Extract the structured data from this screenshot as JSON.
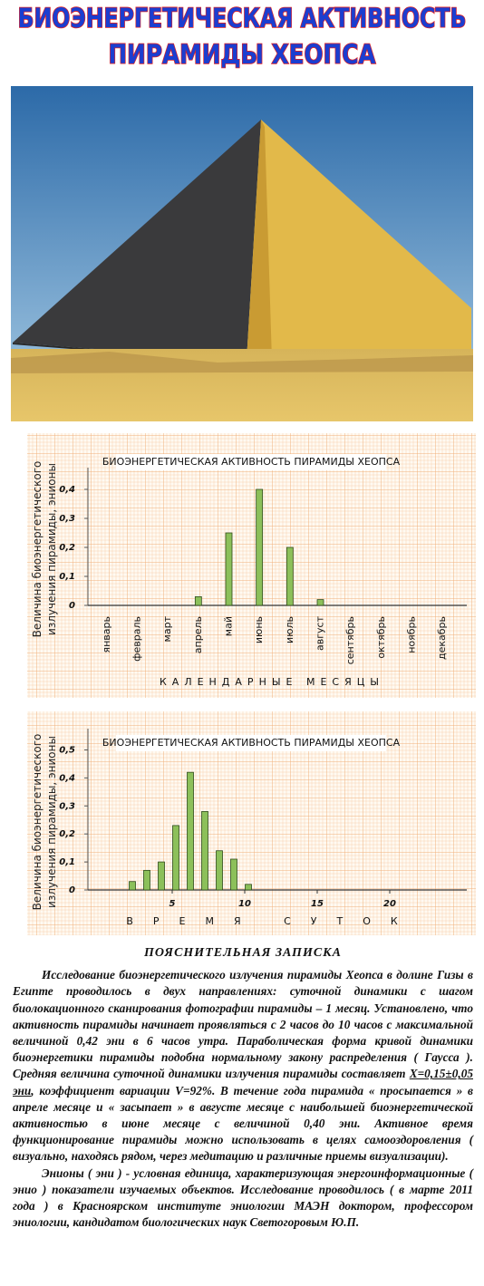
{
  "title": [
    "БИОЭНЕРГЕТИЧЕСКАЯ АКТИВНОСТЬ",
    "ПИРАМИДЫ ХЕОПСА"
  ],
  "chart_data": [
    {
      "type": "bar",
      "title": "БИОЭНЕРГЕТИЧЕСКАЯ АКТИВНОСТЬ ПИРАМИДЫ ХЕОПСА",
      "ylabel": [
        "Величина биоэнергетического",
        "излучения пирамиды, энионы"
      ],
      "xlabel": "КАЛЕНДАРНЫЕ МЕСЯЦЫ",
      "categories": [
        "январь",
        "февраль",
        "март",
        "апрель",
        "май",
        "июнь",
        "июль",
        "август",
        "сентябрь",
        "октябрь",
        "ноябрь",
        "декабрь"
      ],
      "values": [
        0,
        0,
        0,
        0.03,
        0.25,
        0.4,
        0.2,
        0.02,
        0,
        0,
        0,
        0
      ],
      "color": "#8cc05a",
      "ylim": [
        0,
        0.45
      ],
      "yticks": [
        0,
        {
          "value": 0.1,
          "label": "0,1"
        },
        {
          "value": 0.2,
          "label": "0,2"
        },
        {
          "value": 0.3,
          "label": "0,3"
        },
        {
          "value": 0.4,
          "label": "0,4"
        }
      ]
    },
    {
      "type": "bar",
      "title": "БИОЭНЕРГЕТИЧЕСКАЯ АКТИВНОСТЬ ПИРАМИДЫ ХЕОПСА",
      "ylabel": [
        "Величина биоэнергетического",
        "излучения пирамиды, энионы"
      ],
      "xlabel": "ВРЕМЯ СУТОК",
      "x": [
        2,
        3,
        4,
        5,
        6,
        7,
        8,
        9,
        10
      ],
      "values": [
        0.03,
        0.07,
        0.1,
        0.23,
        0.42,
        0.28,
        0.14,
        0.11,
        0.02
      ],
      "color": "#8cc05a",
      "xlim": [
        0,
        25
      ],
      "xticks": [
        5,
        10,
        15,
        20
      ],
      "ylim": [
        0,
        0.55
      ],
      "yticks": [
        0,
        {
          "value": 0.1,
          "label": "0,1"
        },
        {
          "value": 0.2,
          "label": "0,2"
        },
        {
          "value": 0.3,
          "label": "0,3"
        },
        {
          "value": 0.4,
          "label": "0,4"
        },
        {
          "value": 0.5,
          "label": "0,5"
        }
      ]
    }
  ],
  "note": {
    "title": "ПОЯСНИТЕЛЬНАЯ ЗАПИСКА",
    "paragraph_1": [
      "Исследование биоэнергетического излучения пирамиды Хеопса в долине Гизы в Египте проводилось в двух направлениях: суточной динамики с шагом биолокационного сканирования фотографии пирамиды – 1 месяц. Установлено, что активность пирамиды начинает проявляться с 2 часов до 10 часов с максимальной величиной 0,42 эни в 6 часов утра. Параболическая форма кривой динамики биоэнергетики пирамиды подобна нормальному закону распределения ( Гаусса ). Средняя величина суточной динамики излучения пирамиды составляет ",
      "Х=0,15±0,05 эни",
      ", коэффициент вариации V=92%. В течение года пирамида « просыпается » в апреле месяце и « засыпает » в августе месяце с наибольшей биоэнергетической активностью в июне месяце с величиной 0,40 эни. Активное время функционирование пирамиды можно использовать в целях самооздоровления ( визуально, находясь рядом, через медитацию и различные приемы визуализации)."
    ],
    "paragraph_2": "Энионы ( эни ) - условная единица, характеризующая энергоинформационные ( энио ) показатели изучаемых объектов. Исследование проводилось ( в марте 2011 года ) в Красноярском институте эниологии МАЭН доктором, профессором эниологии, кандидатом биологических наук Светогоровым Ю.П."
  }
}
